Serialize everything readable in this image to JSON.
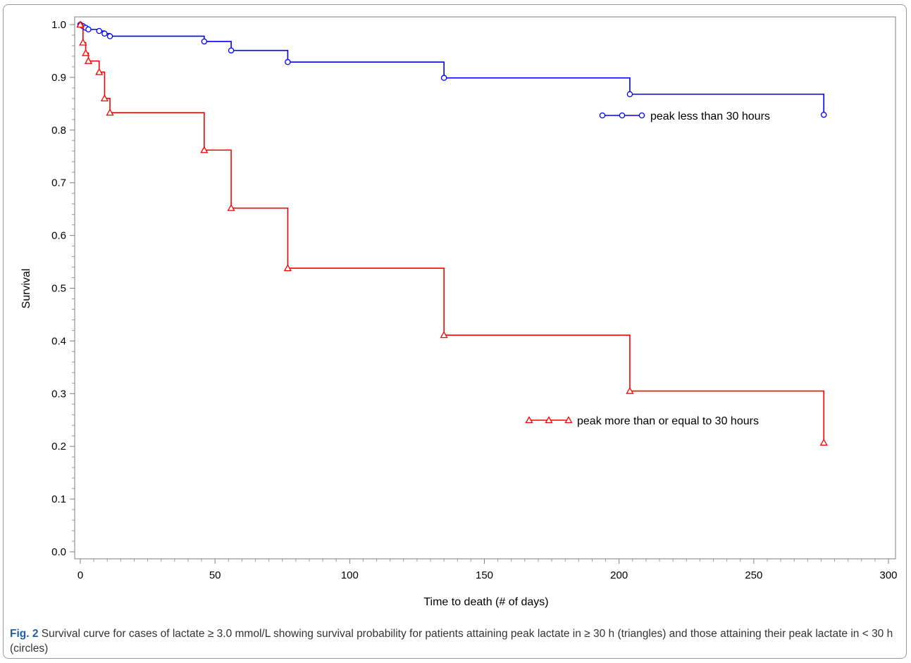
{
  "chart_data": {
    "type": "line",
    "title": "",
    "xlabel": "Time to death (# of days)",
    "ylabel": "Survival",
    "xlim": [
      0,
      300
    ],
    "ylim": [
      0.0,
      1.0
    ],
    "xticks": [
      "0",
      "50",
      "100",
      "150",
      "200",
      "250",
      "300"
    ],
    "yticks": [
      "0.0",
      "0.1",
      "0.2",
      "0.3",
      "0.4",
      "0.5",
      "0.6",
      "0.7",
      "0.8",
      "0.9",
      "1.0"
    ],
    "grid": false,
    "step": true,
    "series": [
      {
        "name": "peak less than 30 hours",
        "color": "#0000ff",
        "marker": "circle",
        "legend_position": "right",
        "x": [
          0,
          1,
          2,
          3,
          7,
          9,
          11,
          46,
          56,
          77,
          135,
          204,
          276
        ],
        "y": [
          1.0,
          0.997,
          0.994,
          0.991,
          0.988,
          0.983,
          0.978,
          0.968,
          0.951,
          0.929,
          0.899,
          0.868,
          0.829
        ]
      },
      {
        "name": "peak more than or equal to 30 hours",
        "color": "#ff0000",
        "marker": "triangle",
        "legend_position": "lower-right",
        "x": [
          0,
          1,
          2,
          3,
          7,
          9,
          11,
          46,
          56,
          77,
          135,
          204,
          276
        ],
        "y": [
          1.0,
          0.966,
          0.946,
          0.931,
          0.91,
          0.86,
          0.833,
          0.762,
          0.652,
          0.538,
          0.411,
          0.305,
          0.207
        ]
      }
    ]
  },
  "caption": {
    "label": "Fig. 2",
    "text": " Survival curve for cases of lactate ≥ 3.0 mmol/L showing survival probability for patients attaining peak lactate in ≥ 30 h (triangles) and those attaining their peak lactate in < 30 h (circles)"
  }
}
